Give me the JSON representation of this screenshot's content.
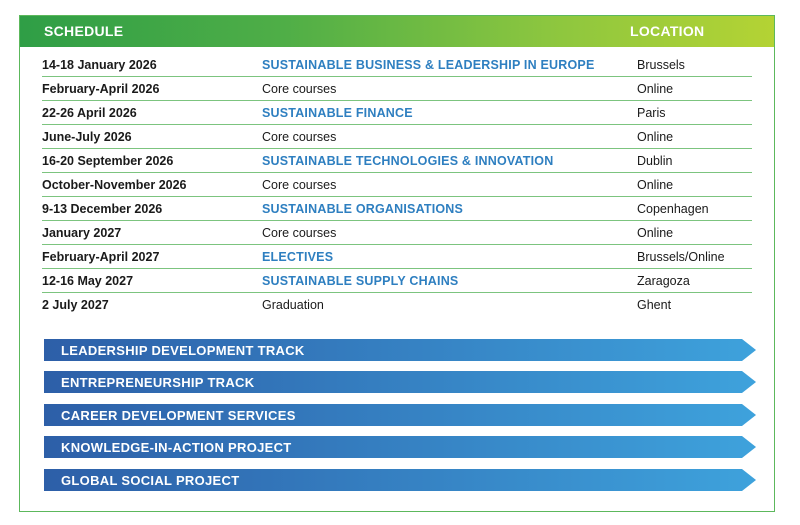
{
  "header": {
    "schedule": "SCHEDULE",
    "location": "LOCATION"
  },
  "schedule": [
    {
      "date": "14-18 January 2026",
      "program": "SUSTAINABLE BUSINESS & LEADERSHIP IN EUROPE",
      "highlight": true,
      "location": "Brussels"
    },
    {
      "date": "February-April 2026",
      "program": "Core courses",
      "highlight": false,
      "location": "Online"
    },
    {
      "date": "22-26 April 2026",
      "program": "SUSTAINABLE FINANCE",
      "highlight": true,
      "location": "Paris"
    },
    {
      "date": "June-July 2026",
      "program": "Core courses",
      "highlight": false,
      "location": "Online"
    },
    {
      "date": "16-20 September 2026",
      "program": "SUSTAINABLE TECHNOLOGIES & INNOVATION",
      "highlight": true,
      "location": "Dublin"
    },
    {
      "date": "October-November 2026",
      "program": "Core courses",
      "highlight": false,
      "location": "Online"
    },
    {
      "date": "9-13 December 2026",
      "program": "SUSTAINABLE ORGANISATIONS",
      "highlight": true,
      "location": "Copenhagen"
    },
    {
      "date": "January 2027",
      "program": "Core courses",
      "highlight": false,
      "location": "Online"
    },
    {
      "date": "February-April 2027",
      "program": "ELECTIVES",
      "highlight": true,
      "location": "Brussels/Online"
    },
    {
      "date": "12-16 May 2027",
      "program": "SUSTAINABLE SUPPLY CHAINS",
      "highlight": true,
      "location": "Zaragoza"
    },
    {
      "date": "2 July 2027",
      "program": "Graduation",
      "highlight": false,
      "location": "Ghent"
    }
  ],
  "tracks": [
    "LEADERSHIP DEVELOPMENT TRACK",
    "ENTREPRENEURSHIP TRACK",
    "CAREER DEVELOPMENT SERVICES",
    "KNOWLEDGE-IN-ACTION PROJECT",
    "GLOBAL SOCIAL PROJECT"
  ],
  "colors": {
    "header_gradient_start": "#2f9e46",
    "header_gradient_end": "#b4d334",
    "highlight_text": "#2e7fc0",
    "track_start": "#2d5fa8",
    "track_end": "#3ea2dc",
    "row_divider": "#7cc47f"
  }
}
